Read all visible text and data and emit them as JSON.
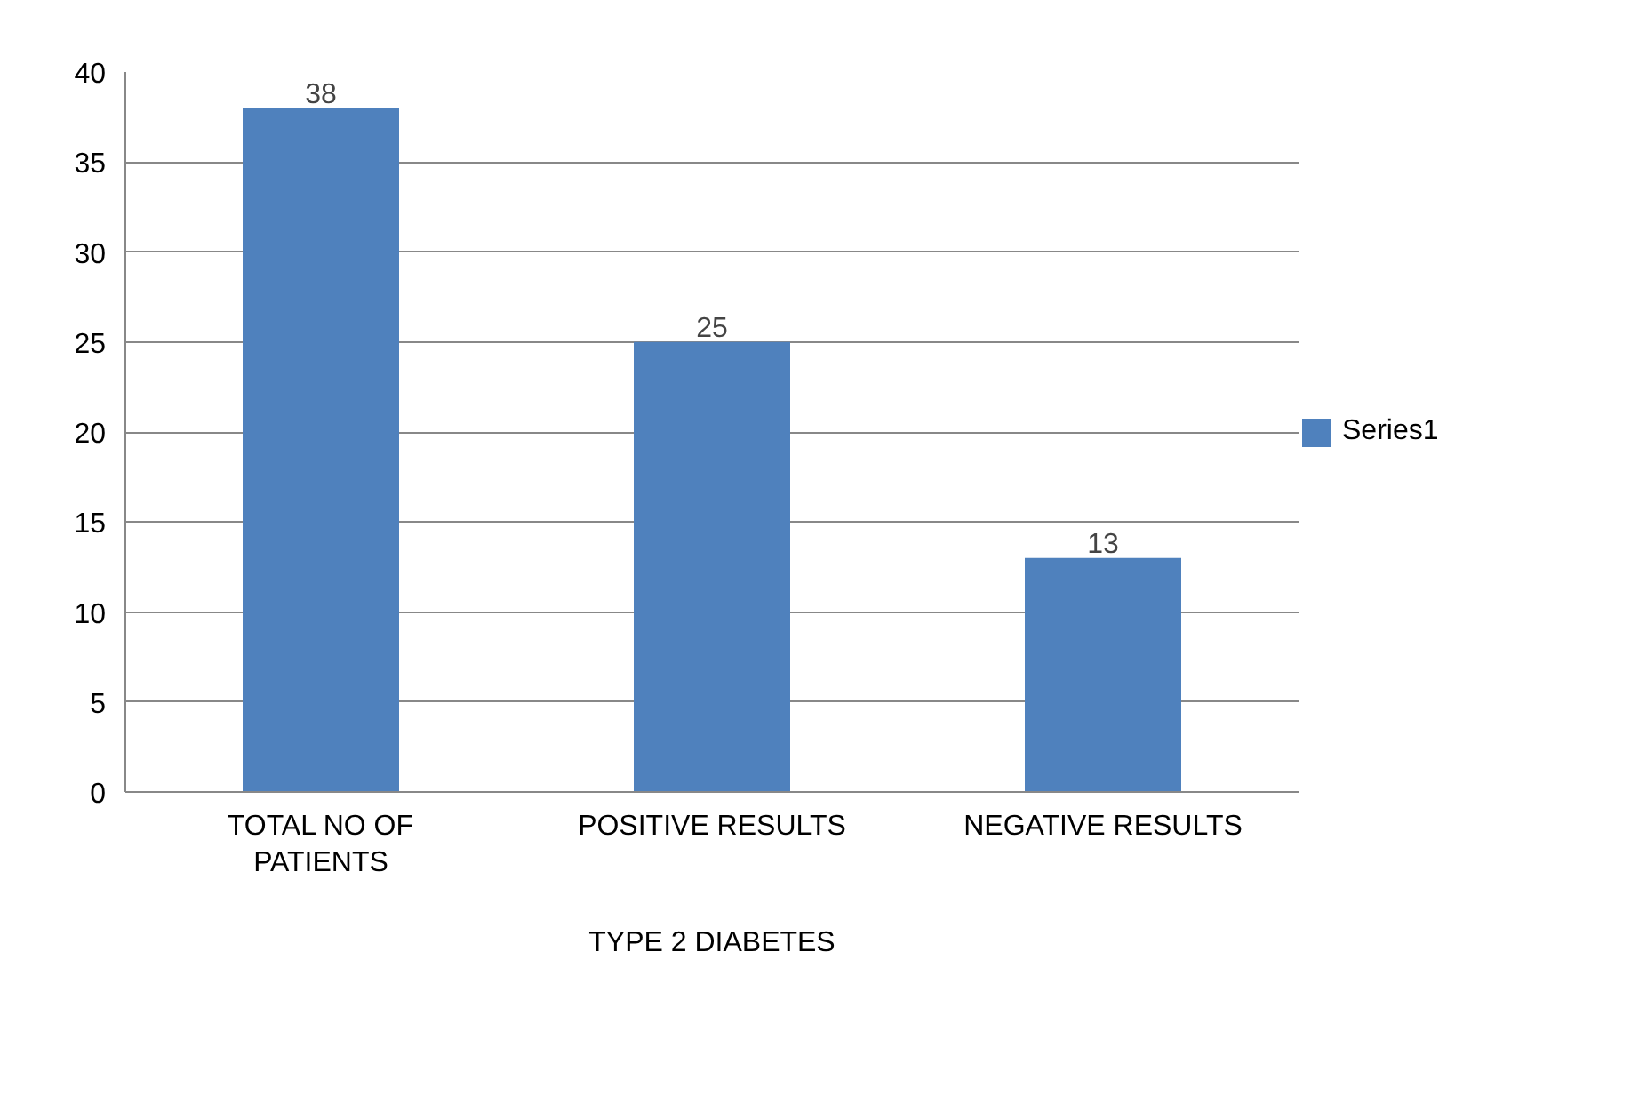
{
  "chart_data": {
    "type": "bar",
    "xlabel": "TYPE 2 DIABETES",
    "categories": [
      "TOTAL NO OF PATIENTS",
      "POSITIVE RESULTS",
      "NEGATIVE RESULTS"
    ],
    "series": [
      {
        "name": "Series1",
        "color": "#4f81bd",
        "values": [
          38,
          25,
          13
        ]
      }
    ],
    "ylim": [
      0,
      40
    ],
    "yticks": [
      0,
      5,
      10,
      15,
      20,
      25,
      30,
      35,
      40
    ],
    "grid": "y",
    "legend": "right",
    "data_labels": true
  }
}
